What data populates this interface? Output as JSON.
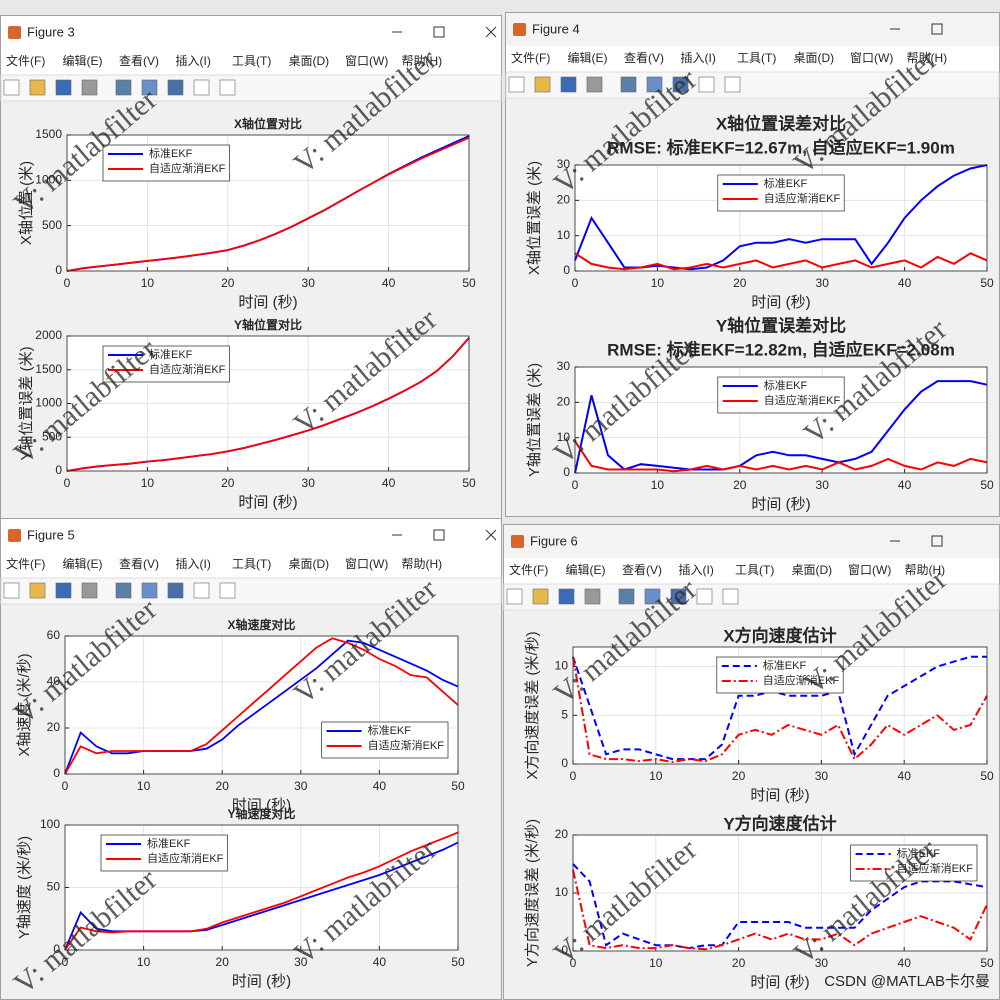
{
  "menu": [
    "文件(F)",
    "编辑(E)",
    "查看(V)",
    "插入(I)",
    "工具(T)",
    "桌面(D)",
    "窗口(W)",
    "帮助(H)"
  ],
  "watermark": "V: matlabfilter",
  "footer": "CSDN @MATLAB卡尔曼",
  "windows": [
    {
      "title": "Figure 3",
      "chart_data": [
        {
          "type": "line",
          "title": "X轴位置对比",
          "xlabel": "时间 (秒)",
          "ylabel": "X轴位置 (米)",
          "x": [
            0,
            2,
            4,
            6,
            8,
            10,
            12,
            14,
            16,
            18,
            20,
            22,
            24,
            26,
            28,
            30,
            32,
            34,
            36,
            38,
            40,
            42,
            44,
            46,
            48,
            50
          ],
          "xlim": [
            0,
            50
          ],
          "xticks": [
            0,
            10,
            20,
            30,
            40,
            50
          ],
          "ylim": [
            0,
            1500
          ],
          "yticks": [
            0,
            500,
            1000,
            1500
          ],
          "grid": true,
          "legend": "northwest",
          "series": [
            {
              "name": "标准EKF",
              "color": "#0000ff",
              "line_style": "solid",
              "values": [
                0,
                30,
                50,
                70,
                90,
                110,
                130,
                150,
                175,
                200,
                230,
                280,
                340,
                410,
                490,
                580,
                670,
                770,
                870,
                970,
                1070,
                1160,
                1250,
                1330,
                1410,
                1490
              ]
            },
            {
              "name": "自适应渐消EKF",
              "color": "#ff0000",
              "line_style": "solid",
              "values": [
                0,
                32,
                52,
                71,
                92,
                112,
                131,
                152,
                176,
                202,
                232,
                281,
                342,
                412,
                492,
                582,
                672,
                772,
                872,
                968,
                1065,
                1152,
                1238,
                1316,
                1392,
                1470
              ]
            }
          ]
        },
        {
          "type": "line",
          "title": "Y轴位置对比",
          "xlabel": "时间 (秒)",
          "ylabel": "Y轴位置误差 (米)",
          "x": [
            0,
            2,
            4,
            6,
            8,
            10,
            12,
            14,
            16,
            18,
            20,
            22,
            24,
            26,
            28,
            30,
            32,
            34,
            36,
            38,
            40,
            42,
            44,
            46,
            48,
            50
          ],
          "xlim": [
            0,
            50
          ],
          "xticks": [
            0,
            10,
            20,
            30,
            40,
            50
          ],
          "ylim": [
            0,
            2000
          ],
          "yticks": [
            0,
            500,
            1000,
            1500,
            2000
          ],
          "grid": true,
          "legend": "northwest",
          "series": [
            {
              "name": "标准EKF",
              "color": "#0000ff",
              "line_style": "solid",
              "values": [
                0,
                40,
                70,
                90,
                110,
                140,
                160,
                190,
                220,
                250,
                290,
                340,
                400,
                460,
                530,
                600,
                680,
                770,
                860,
                960,
                1070,
                1190,
                1320,
                1480,
                1700,
                1970
              ]
            },
            {
              "name": "自适应渐消EKF",
              "color": "#ff0000",
              "line_style": "solid",
              "values": [
                0,
                42,
                72,
                92,
                112,
                141,
                162,
                191,
                222,
                252,
                292,
                342,
                402,
                462,
                532,
                602,
                682,
                772,
                862,
                962,
                1072,
                1192,
                1322,
                1482,
                1702,
                1975
              ]
            }
          ]
        }
      ]
    },
    {
      "title": "Figure 4",
      "chart_data": [
        {
          "type": "line",
          "title": "X轴位置误差对比",
          "subtitle": "RMSE: 标准EKF=12.67m, 自适应EKF=1.90m",
          "xlabel": "时间 (秒)",
          "ylabel": "X轴位置误差 (米)",
          "x": [
            0,
            2,
            4,
            6,
            8,
            10,
            12,
            14,
            16,
            18,
            20,
            22,
            24,
            26,
            28,
            30,
            32,
            34,
            36,
            38,
            40,
            42,
            44,
            46,
            48,
            50
          ],
          "xlim": [
            0,
            50
          ],
          "xticks": [
            0,
            10,
            20,
            30,
            40,
            50
          ],
          "ylim": [
            0,
            30
          ],
          "yticks": [
            0,
            10,
            20,
            30
          ],
          "grid": true,
          "legend": "north",
          "series": [
            {
              "name": "标准EKF",
              "color": "#0000ff",
              "line_style": "solid",
              "values": [
                3,
                15,
                8,
                1,
                1,
                1.5,
                1,
                0.5,
                1,
                3,
                7,
                8,
                8,
                9,
                8,
                9,
                9,
                9,
                2,
                8,
                15,
                20,
                24,
                27,
                29,
                30
              ]
            },
            {
              "name": "自适应渐消EKF",
              "color": "#ff0000",
              "line_style": "solid",
              "values": [
                5,
                2,
                1,
                0.5,
                1,
                2,
                0.5,
                1,
                2,
                1,
                2,
                3,
                1,
                2,
                3,
                1,
                2,
                3,
                1,
                2,
                3,
                1,
                4,
                2,
                5,
                3
              ]
            }
          ]
        },
        {
          "type": "line",
          "title": "Y轴位置误差对比",
          "subtitle": "RMSE: 标准EKF=12.82m, 自适应EKF=2.08m",
          "xlabel": "时间 (秒)",
          "ylabel": "Y轴位置误差 (米)",
          "x": [
            0,
            2,
            4,
            6,
            8,
            10,
            12,
            14,
            16,
            18,
            20,
            22,
            24,
            26,
            28,
            30,
            32,
            34,
            36,
            38,
            40,
            42,
            44,
            46,
            48,
            50
          ],
          "xlim": [
            0,
            50
          ],
          "xticks": [
            0,
            10,
            20,
            30,
            40,
            50
          ],
          "ylim": [
            0,
            30
          ],
          "yticks": [
            0,
            10,
            20,
            30
          ],
          "grid": true,
          "legend": "north",
          "series": [
            {
              "name": "标准EKF",
              "color": "#0000ff",
              "line_style": "solid",
              "values": [
                0,
                22,
                5,
                1,
                2.5,
                2,
                1.5,
                1,
                1,
                1,
                2,
                5,
                6,
                5,
                5,
                4,
                3,
                4,
                6,
                12,
                18,
                23,
                26,
                26,
                26,
                25
              ]
            },
            {
              "name": "自适应渐消EKF",
              "color": "#ff0000",
              "line_style": "solid",
              "values": [
                9,
                2,
                1,
                1,
                1,
                1,
                0.5,
                1,
                2,
                1,
                2,
                1,
                2,
                1,
                2,
                1,
                3,
                1,
                2,
                4,
                2,
                1,
                3,
                2,
                4,
                3
              ]
            }
          ]
        }
      ]
    },
    {
      "title": "Figure 5",
      "chart_data": [
        {
          "type": "line",
          "title": "X轴速度对比",
          "xlabel": "时间 (秒)",
          "ylabel": "X轴速度 (米/秒)",
          "x": [
            0,
            2,
            4,
            6,
            8,
            10,
            12,
            14,
            16,
            18,
            20,
            22,
            24,
            26,
            28,
            30,
            32,
            34,
            36,
            38,
            40,
            42,
            44,
            46,
            48,
            50
          ],
          "xlim": [
            0,
            50
          ],
          "xticks": [
            0,
            10,
            20,
            30,
            40,
            50
          ],
          "ylim": [
            0,
            60
          ],
          "yticks": [
            0,
            20,
            40,
            60
          ],
          "grid": true,
          "legend": "southeast",
          "series": [
            {
              "name": "标准EKF",
              "color": "#0000ff",
              "line_style": "solid",
              "values": [
                0,
                18,
                12,
                9,
                9,
                10,
                10,
                10,
                10,
                11,
                15,
                21,
                26,
                31,
                36,
                41,
                46,
                52,
                58,
                57,
                54,
                51,
                48,
                45,
                41,
                38
              ]
            },
            {
              "name": "自适应渐消EKF",
              "color": "#ff0000",
              "line_style": "solid",
              "values": [
                0,
                12,
                9,
                10,
                10,
                10,
                10,
                10,
                10,
                13,
                19,
                25,
                31,
                37,
                43,
                49,
                55,
                59,
                57,
                54,
                50,
                47,
                43,
                42,
                36,
                30
              ]
            }
          ]
        },
        {
          "type": "line",
          "title": "Y轴速度对比",
          "xlabel": "时间 (秒)",
          "ylabel": "Y轴速度 (米/秒)",
          "x": [
            0,
            2,
            4,
            6,
            8,
            10,
            12,
            14,
            16,
            18,
            20,
            22,
            24,
            26,
            28,
            30,
            32,
            34,
            36,
            38,
            40,
            42,
            44,
            46,
            48,
            50
          ],
          "xlim": [
            0,
            50
          ],
          "xticks": [
            0,
            10,
            20,
            30,
            40,
            50
          ],
          "ylim": [
            0,
            100
          ],
          "yticks": [
            0,
            50,
            100
          ],
          "grid": true,
          "legend": "northwest",
          "series": [
            {
              "name": "标准EKF",
              "color": "#0000ff",
              "line_style": "solid",
              "values": [
                0,
                30,
                17,
                15,
                15,
                15,
                15,
                15,
                15,
                16,
                20,
                24,
                28,
                32,
                36,
                40,
                44,
                48,
                52,
                56,
                60,
                65,
                70,
                75,
                80,
                86
              ]
            },
            {
              "name": "自适应渐消EKF",
              "color": "#ff0000",
              "line_style": "solid",
              "values": [
                0,
                18,
                15,
                14,
                15,
                15,
                15,
                15,
                15,
                17,
                22,
                26,
                30,
                34,
                38,
                43,
                48,
                53,
                58,
                62,
                67,
                73,
                79,
                84,
                89,
                94
              ]
            }
          ]
        }
      ]
    },
    {
      "title": "Figure 6",
      "chart_data": [
        {
          "type": "line",
          "title": "X方向速度估计",
          "xlabel": "时间 (秒)",
          "ylabel": "X方向速度误差 (米/秒)",
          "x": [
            0,
            2,
            4,
            6,
            8,
            10,
            12,
            14,
            16,
            18,
            20,
            22,
            24,
            26,
            28,
            30,
            32,
            34,
            36,
            38,
            40,
            42,
            44,
            46,
            48,
            50
          ],
          "xlim": [
            0,
            50
          ],
          "xticks": [
            0,
            10,
            20,
            30,
            40,
            50
          ],
          "ylim": [
            0,
            12
          ],
          "yticks": [
            0,
            5,
            10
          ],
          "grid": true,
          "legend": "north",
          "series": [
            {
              "name": "标准EKF",
              "color": "#0000ff",
              "line_style": "dashed",
              "values": [
                11,
                6,
                1,
                1.5,
                1.5,
                1,
                0.5,
                0.5,
                0.5,
                2,
                7,
                7,
                7.5,
                7,
                7,
                7,
                7.5,
                1,
                4,
                7,
                8,
                9,
                10,
                10.5,
                11,
                11
              ]
            },
            {
              "name": "自适应渐消EKF",
              "color": "#ff0000",
              "line_style": "dashdot",
              "values": [
                11,
                1,
                0.5,
                0.5,
                0.3,
                0.5,
                0.2,
                0.5,
                0.3,
                1,
                3,
                3.5,
                3,
                4,
                3.5,
                3,
                4,
                0.5,
                2,
                4,
                3,
                4,
                5,
                3.5,
                4,
                7
              ]
            }
          ]
        },
        {
          "type": "line",
          "title": "Y方向速度估计",
          "xlabel": "时间 (秒)",
          "ylabel": "Y方向速度误差 (米/秒)",
          "x": [
            0,
            2,
            4,
            6,
            8,
            10,
            12,
            14,
            16,
            18,
            20,
            22,
            24,
            26,
            28,
            30,
            32,
            34,
            36,
            38,
            40,
            42,
            44,
            46,
            48,
            50
          ],
          "xlim": [
            0,
            50
          ],
          "xticks": [
            0,
            10,
            20,
            30,
            40,
            50
          ],
          "ylim": [
            0,
            20
          ],
          "yticks": [
            0,
            10,
            20
          ],
          "grid": true,
          "legend": "northeast",
          "series": [
            {
              "name": "标准EKF",
              "color": "#0000ff",
              "line_style": "dashed",
              "values": [
                15,
                12,
                1,
                3,
                2,
                1,
                1,
                0.5,
                1,
                1,
                5,
                5,
                5,
                5,
                4,
                4,
                4,
                4,
                7,
                9,
                11,
                12,
                12,
                12,
                11.5,
                11
              ]
            },
            {
              "name": "自适应渐消EKF",
              "color": "#ff0000",
              "line_style": "dashdot",
              "values": [
                14,
                1,
                0.5,
                1,
                0.5,
                0.5,
                1,
                0.5,
                0.3,
                1,
                2,
                3,
                2,
                3,
                2,
                2,
                3,
                1,
                3,
                4,
                5,
                6,
                5,
                4,
                2,
                8
              ]
            }
          ]
        }
      ]
    }
  ]
}
